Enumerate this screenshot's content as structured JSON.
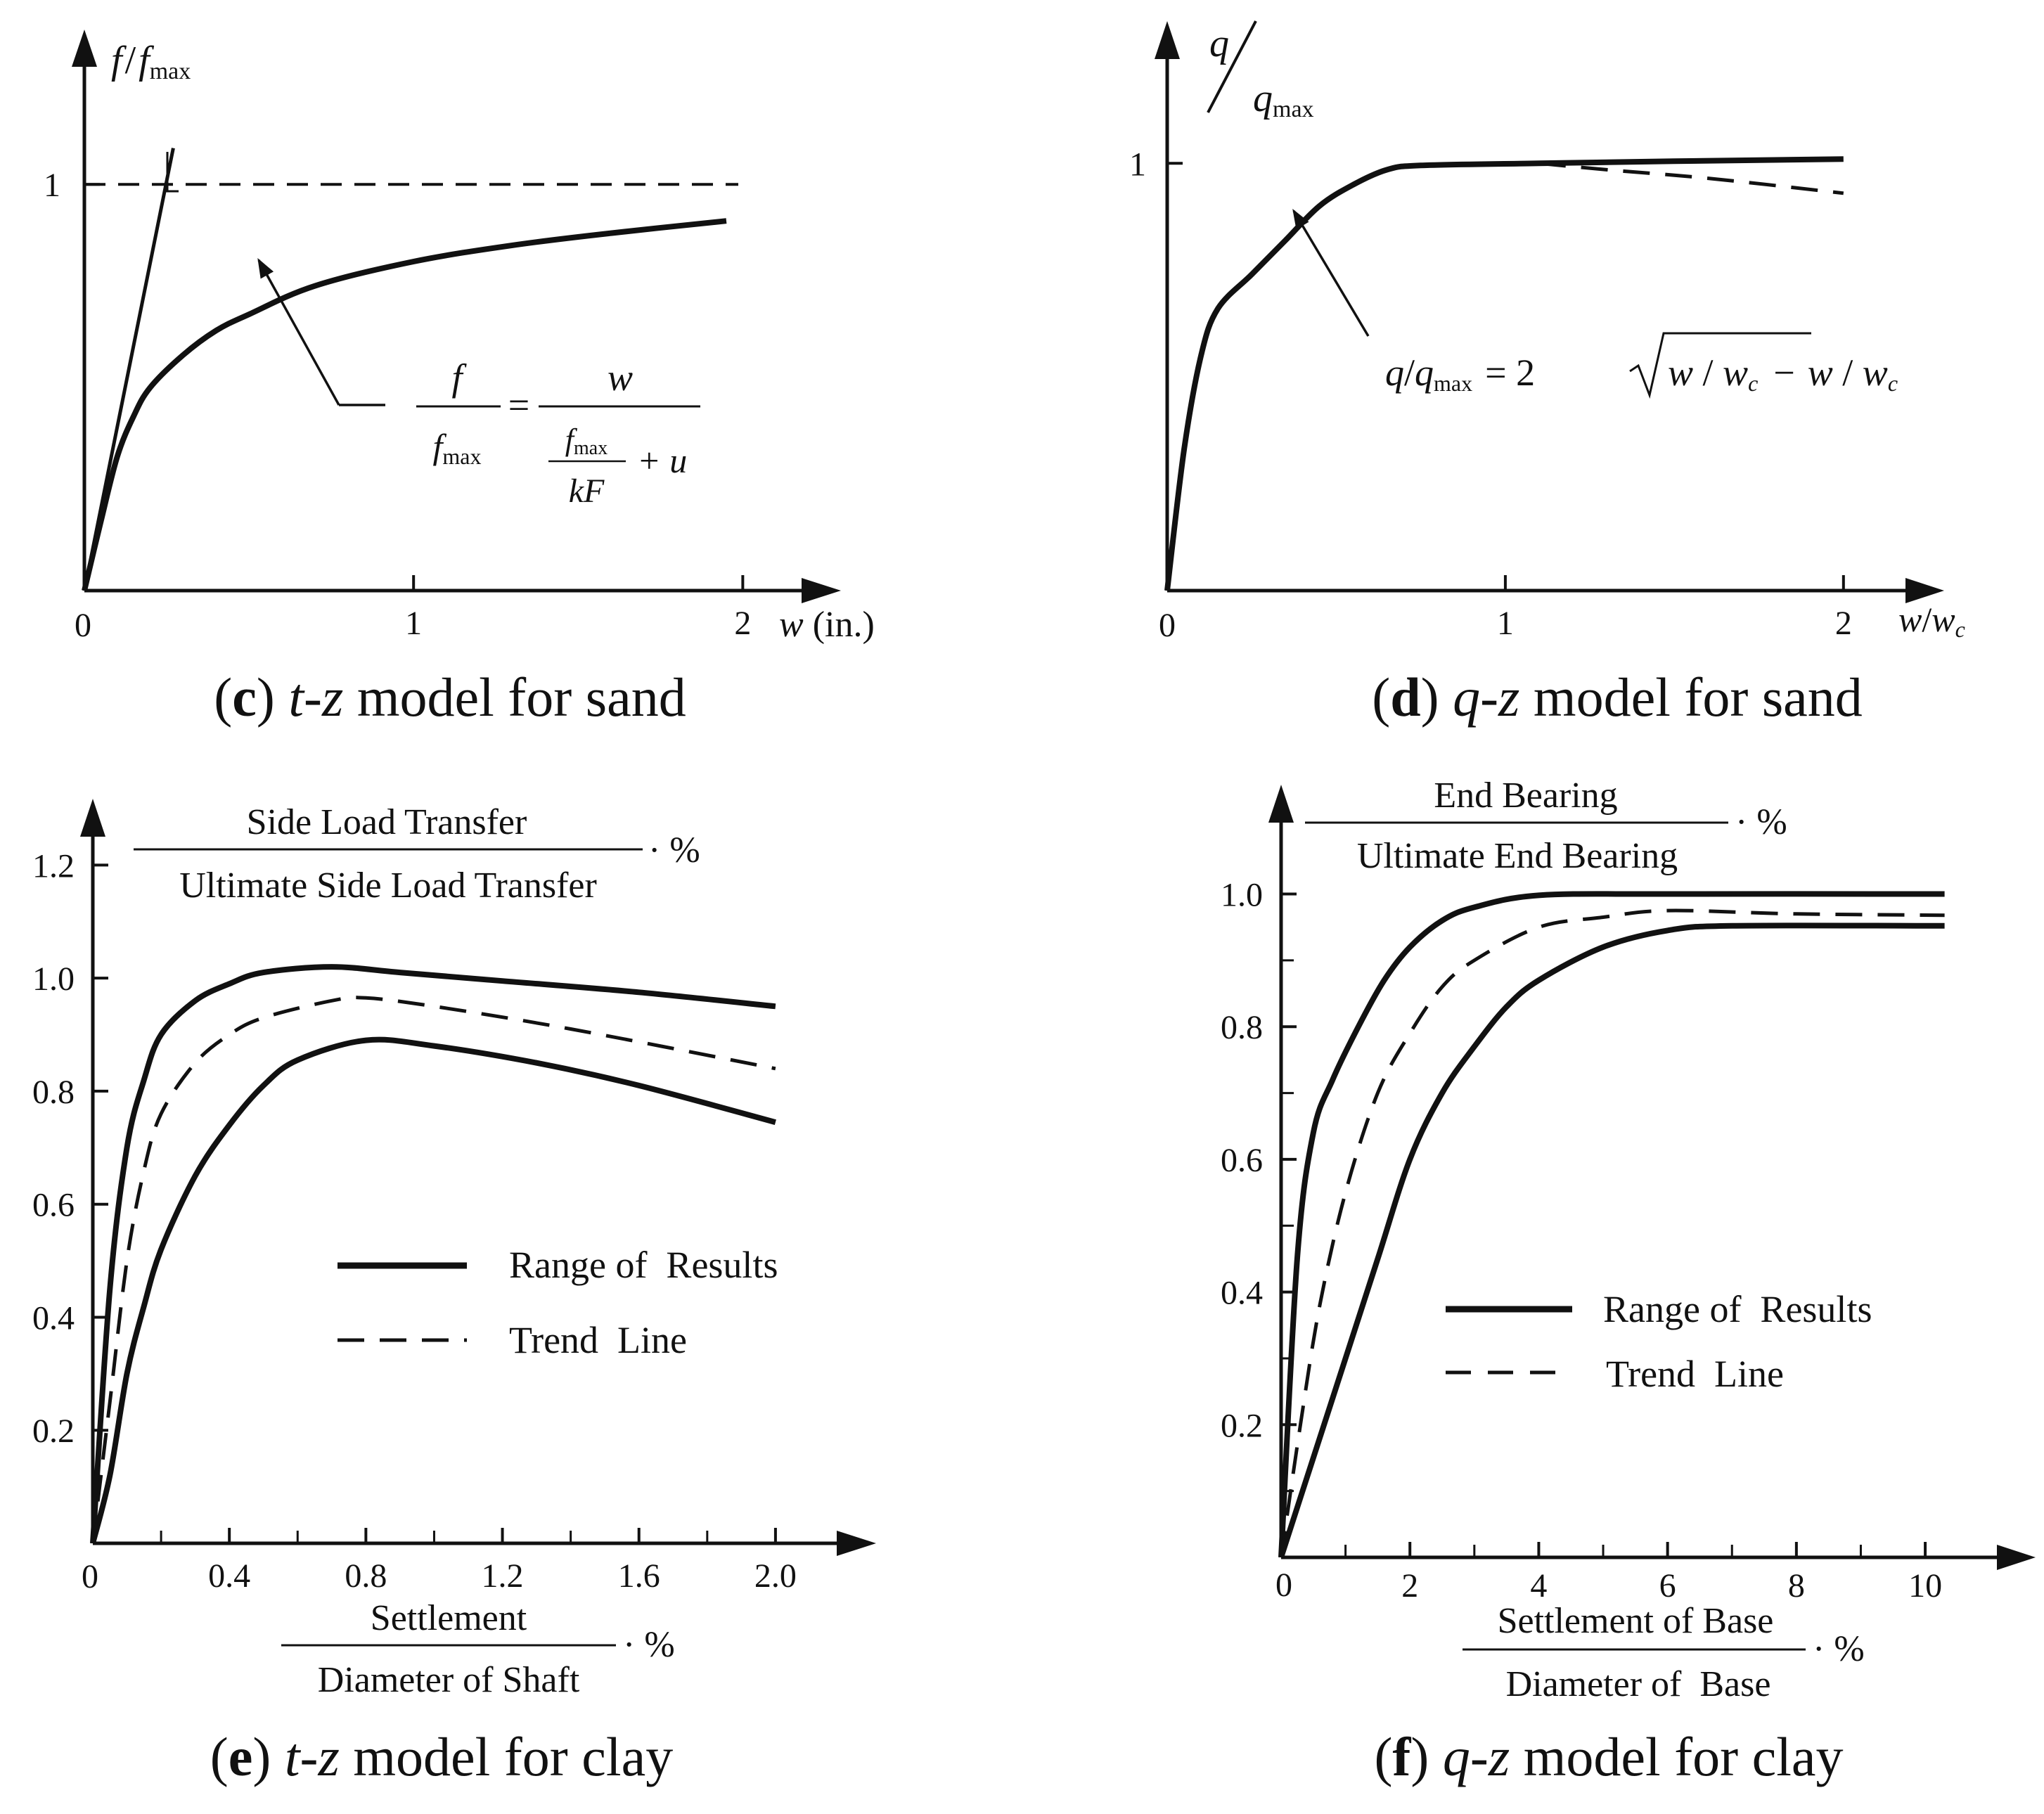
{
  "chart_data": [
    {
      "id": "c",
      "type": "line",
      "caption": {
        "letter": "c",
        "model": "t-z",
        "rest": " model for sand"
      },
      "y_axis_label": {
        "f": "f",
        "slash": "/",
        "fmax": "f",
        "sub": "max"
      },
      "x_axis_label": {
        "w": "w",
        "unit": " (in.)"
      },
      "origin_label": "0",
      "y_ticks": [
        {
          "v": 1,
          "label": "1"
        }
      ],
      "x_ticks": [
        {
          "v": 1,
          "label": "1"
        },
        {
          "v": 2,
          "label": "2"
        }
      ],
      "xlim": [
        0,
        2.2
      ],
      "ylim": [
        0,
        1.35
      ],
      "asymptote": 1,
      "initial_tangent": [
        [
          0,
          0
        ],
        [
          0.27,
          1.02
        ]
      ],
      "series": [
        {
          "style": "solid",
          "points": [
            [
              0,
              0
            ],
            [
              0.05,
              0.17
            ],
            [
              0.1,
              0.33
            ],
            [
              0.15,
              0.43
            ],
            [
              0.2,
              0.5
            ],
            [
              0.3,
              0.58
            ],
            [
              0.4,
              0.64
            ],
            [
              0.5,
              0.68
            ],
            [
              0.7,
              0.75
            ],
            [
              1.0,
              0.81
            ],
            [
              1.3,
              0.85
            ],
            [
              1.6,
              0.88
            ],
            [
              1.95,
              0.91
            ]
          ]
        }
      ],
      "equation": {
        "lhs_num": "f",
        "lhs_den_f": "f",
        "lhs_den_sub": "max",
        "eq": "=",
        "rhs_num": "w",
        "rhs_den_f": "f",
        "rhs_den_sub": "max",
        "rhs_den_kf": "kF",
        "rhs_plus": "+ u"
      }
    },
    {
      "id": "d",
      "type": "line",
      "caption": {
        "letter": "d",
        "model": "q-z",
        "rest": " model for sand"
      },
      "y_axis_label": {
        "q": "q",
        "qmax": "q",
        "sub": "max"
      },
      "x_axis_label": {
        "w": "w",
        "slash": "/",
        "wc": "w",
        "sub": "c"
      },
      "origin_label": "0",
      "y_ticks": [
        {
          "v": 1,
          "label": "1"
        }
      ],
      "x_ticks": [
        {
          "v": 1,
          "label": "1"
        },
        {
          "v": 2,
          "label": "2"
        }
      ],
      "xlim": [
        0,
        2.2
      ],
      "ylim": [
        0,
        1.3
      ],
      "series": [
        {
          "style": "solid",
          "points": [
            [
              0,
              0
            ],
            [
              0.05,
              0.33
            ],
            [
              0.1,
              0.55
            ],
            [
              0.15,
              0.66
            ],
            [
              0.25,
              0.74
            ],
            [
              0.35,
              0.82
            ],
            [
              0.45,
              0.9
            ],
            [
              0.55,
              0.95
            ],
            [
              0.65,
              0.985
            ],
            [
              0.75,
              0.995
            ],
            [
              1.1,
              1.0
            ],
            [
              1.5,
              1.005
            ],
            [
              2.0,
              1.01
            ]
          ]
        },
        {
          "style": "dashed",
          "points": [
            [
              1.1,
              1.0
            ],
            [
              1.3,
              0.985
            ],
            [
              1.6,
              0.965
            ],
            [
              2.0,
              0.93
            ]
          ]
        }
      ],
      "equation": {
        "q": "q",
        "slash1": "/",
        "qm": "q",
        "sub": "max",
        "eq": "= 2",
        "w1": "w",
        "s1": " / ",
        "wc1": "w",
        "c1": "c",
        "minus": "−",
        "w2": "w",
        "s2": " / ",
        "wc2": "w",
        "c2": "c"
      }
    },
    {
      "id": "e",
      "type": "line",
      "caption": {
        "letter": "e",
        "model": "t-z",
        "rest": " model for clay"
      },
      "y_title": {
        "num": "Side Load Transfer",
        "den": "Ultimate Side Load Transfer",
        "suffix": "· %"
      },
      "x_title": {
        "num": "Settlement",
        "den": "Diameter of Shaft",
        "suffix": "· %"
      },
      "origin_label": "0",
      "y_ticks": [
        {
          "v": 0.2,
          "label": "0.2"
        },
        {
          "v": 0.4,
          "label": "0.4"
        },
        {
          "v": 0.6,
          "label": "0.6"
        },
        {
          "v": 0.8,
          "label": "0.8"
        },
        {
          "v": 1.0,
          "label": "1.0"
        },
        {
          "v": 1.2,
          "label": "1.2"
        }
      ],
      "x_ticks": [
        {
          "v": 0.4,
          "label": "0.4"
        },
        {
          "v": 0.8,
          "label": "0.8"
        },
        {
          "v": 1.2,
          "label": "1.2"
        },
        {
          "v": 1.6,
          "label": "1.6"
        },
        {
          "v": 2.0,
          "label": "2.0"
        }
      ],
      "x_minor": [
        0.2,
        0.6,
        1.0,
        1.4,
        1.8
      ],
      "xlim": [
        0,
        2.2
      ],
      "ylim": [
        0,
        1.3
      ],
      "series": [
        {
          "name": "Range of  Results",
          "style": "solid",
          "points": [
            [
              0,
              0
            ],
            [
              0.05,
              0.45
            ],
            [
              0.1,
              0.7
            ],
            [
              0.15,
              0.82
            ],
            [
              0.2,
              0.9
            ],
            [
              0.3,
              0.96
            ],
            [
              0.4,
              0.99
            ],
            [
              0.5,
              1.01
            ],
            [
              0.7,
              1.02
            ],
            [
              0.9,
              1.01
            ],
            [
              1.2,
              0.995
            ],
            [
              1.6,
              0.975
            ],
            [
              2.0,
              0.95
            ]
          ]
        },
        {
          "name": "Trend  Line",
          "style": "dashed",
          "points": [
            [
              0,
              0
            ],
            [
              0.05,
              0.25
            ],
            [
              0.1,
              0.5
            ],
            [
              0.15,
              0.66
            ],
            [
              0.2,
              0.76
            ],
            [
              0.3,
              0.85
            ],
            [
              0.4,
              0.9
            ],
            [
              0.5,
              0.93
            ],
            [
              0.7,
              0.96
            ],
            [
              0.8,
              0.965
            ],
            [
              1.0,
              0.95
            ],
            [
              1.4,
              0.91
            ],
            [
              2.0,
              0.84
            ]
          ]
        },
        {
          "name": "Range of  Results",
          "style": "solid",
          "points": [
            [
              0,
              0
            ],
            [
              0.05,
              0.12
            ],
            [
              0.1,
              0.3
            ],
            [
              0.15,
              0.42
            ],
            [
              0.2,
              0.52
            ],
            [
              0.3,
              0.65
            ],
            [
              0.4,
              0.74
            ],
            [
              0.5,
              0.81
            ],
            [
              0.6,
              0.855
            ],
            [
              0.8,
              0.89
            ],
            [
              1.0,
              0.88
            ],
            [
              1.3,
              0.85
            ],
            [
              1.6,
              0.81
            ],
            [
              2.0,
              0.745
            ]
          ]
        }
      ],
      "legend": [
        {
          "label": "Range of  Results",
          "style": "solid"
        },
        {
          "label": "Trend  Line",
          "style": "dashed"
        }
      ],
      "legend_position": "center-right"
    },
    {
      "id": "f",
      "type": "line",
      "caption": {
        "letter": "f",
        "model": "q-z",
        "rest": " model for clay"
      },
      "y_title": {
        "num": "End  Bearing",
        "den": "Ultimate End  Bearing",
        "suffix": "· %"
      },
      "x_title": {
        "num": "Settlement of Base",
        "den": "Diameter of  Base",
        "suffix": "· %"
      },
      "origin_label": "0",
      "y_ticks": [
        {
          "v": 0.2,
          "label": "0.2"
        },
        {
          "v": 0.4,
          "label": "0.4"
        },
        {
          "v": 0.6,
          "label": "0.6"
        },
        {
          "v": 0.8,
          "label": "0.8"
        },
        {
          "v": 1.0,
          "label": "1.0"
        }
      ],
      "y_minor": [
        0.1,
        0.3,
        0.5,
        0.7,
        0.9
      ],
      "x_ticks": [
        {
          "v": 2,
          "label": "2"
        },
        {
          "v": 4,
          "label": "4"
        },
        {
          "v": 6,
          "label": "6"
        },
        {
          "v": 8,
          "label": "8"
        },
        {
          "v": 10,
          "label": "10"
        }
      ],
      "x_minor": [
        1,
        3,
        5,
        7,
        9
      ],
      "xlim": [
        0,
        11.2
      ],
      "ylim": [
        0,
        1.15
      ],
      "series": [
        {
          "name": "Range of  Results",
          "style": "solid",
          "points": [
            [
              0,
              0
            ],
            [
              0.25,
              0.45
            ],
            [
              0.5,
              0.64
            ],
            [
              0.8,
              0.72
            ],
            [
              1.2,
              0.8
            ],
            [
              1.6,
              0.87
            ],
            [
              2.0,
              0.92
            ],
            [
              2.5,
              0.96
            ],
            [
              3.0,
              0.98
            ],
            [
              4.0,
              0.998
            ],
            [
              6.0,
              1.0
            ],
            [
              10.3,
              1.0
            ]
          ]
        },
        {
          "name": "Trend  Line",
          "style": "dashed",
          "points": [
            [
              0,
              0
            ],
            [
              0.3,
              0.2
            ],
            [
              0.6,
              0.38
            ],
            [
              1.0,
              0.55
            ],
            [
              1.5,
              0.7
            ],
            [
              2.0,
              0.79
            ],
            [
              2.5,
              0.86
            ],
            [
              3.0,
              0.9
            ],
            [
              4.0,
              0.95
            ],
            [
              5.0,
              0.965
            ],
            [
              6.0,
              0.975
            ],
            [
              8.0,
              0.97
            ],
            [
              10.3,
              0.968
            ]
          ]
        },
        {
          "name": "Range of  Results",
          "style": "solid",
          "points": [
            [
              0,
              0
            ],
            [
              0.5,
              0.15
            ],
            [
              1.0,
              0.3
            ],
            [
              1.5,
              0.45
            ],
            [
              2.0,
              0.6
            ],
            [
              2.5,
              0.7
            ],
            [
              3.0,
              0.77
            ],
            [
              3.5,
              0.83
            ],
            [
              4.0,
              0.87
            ],
            [
              5.0,
              0.92
            ],
            [
              6.0,
              0.945
            ],
            [
              7.0,
              0.952
            ],
            [
              10.3,
              0.952
            ]
          ]
        }
      ],
      "legend": [
        {
          "label": "Range of  Results",
          "style": "solid"
        },
        {
          "label": "Trend  Line",
          "style": "dashed"
        }
      ],
      "legend_position": "center-right"
    }
  ]
}
